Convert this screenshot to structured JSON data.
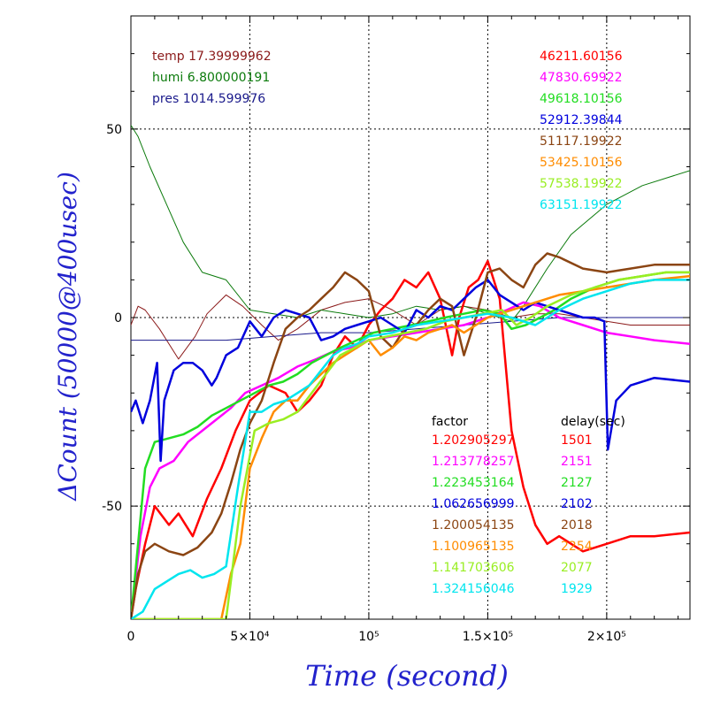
{
  "chart_data": {
    "type": "line",
    "xlabel": "Time (second)",
    "ylabel": "ΔCount (50000@400usec)",
    "xlim": [
      0,
      235000
    ],
    "ylim": [
      -80,
      80
    ],
    "x_ticks": [
      0,
      50000,
      100000,
      150000,
      200000
    ],
    "x_tick_labels": [
      "0",
      "5×10⁴",
      "10⁵",
      "1.5×10⁵",
      "2×10⁵"
    ],
    "y_ticks": [
      -50,
      0,
      50
    ],
    "y_tick_labels": [
      "-50",
      "0",
      "50"
    ],
    "grid": true,
    "env": [
      {
        "label": "temp 17.39999962",
        "color": "#8b1a1a"
      },
      {
        "label": "humi 6.800000191",
        "color": "#0b7a0b"
      },
      {
        "label": "pres 1014.599976",
        "color": "#1a1a8b"
      }
    ],
    "counts": [
      {
        "value": "46211.60156",
        "color": "#ff0000"
      },
      {
        "value": "47830.69922",
        "color": "#ff00ff"
      },
      {
        "value": "49618.10156",
        "color": "#22dd22"
      },
      {
        "value": "52912.39844",
        "color": "#0000dd"
      },
      {
        "value": "51117.19922",
        "color": "#8b4513"
      },
      {
        "value": "53425.10156",
        "color": "#ff8c00"
      },
      {
        "value": "57538.19922",
        "color": "#99ee22"
      },
      {
        "value": "63151.19922",
        "color": "#00e5ee"
      }
    ],
    "factor_header": "factor",
    "delay_header": "delay(sec)",
    "factors": [
      "1.202905297",
      "1.213778257",
      "1.223453164",
      "1.062656999",
      "1.200054135",
      "1.100965135",
      "1.141703606",
      "1.324156046"
    ],
    "delays": [
      "1501",
      "2151",
      "2127",
      "2102",
      "2018",
      "2254",
      "2077",
      "1929"
    ],
    "series": [
      {
        "name": "temp",
        "color": "#8b1a1a",
        "x": [
          0,
          3000,
          6000,
          12000,
          20000,
          27000,
          32000,
          40000,
          47000,
          55000,
          62000,
          70000,
          80000,
          90000,
          100000,
          110000,
          120000,
          130000,
          140000,
          150000,
          160000,
          170000,
          180000,
          190000,
          200000,
          210000,
          220000,
          235000
        ],
        "y": [
          -2,
          3,
          2,
          -3,
          -11,
          -5,
          1,
          6,
          3,
          -2,
          -6,
          -3,
          2,
          4,
          5,
          2,
          -2,
          2,
          3,
          2,
          0,
          1,
          1,
          0,
          -1,
          -2,
          -2,
          -2
        ]
      },
      {
        "name": "humi",
        "color": "#0b7a0b",
        "x": [
          0,
          3000,
          8000,
          15000,
          22000,
          30000,
          40000,
          50000,
          60000,
          70000,
          80000,
          90000,
          100000,
          110000,
          120000,
          130000,
          140000,
          150000,
          160000,
          165000,
          175000,
          185000,
          200000,
          215000,
          235000
        ],
        "y": [
          51,
          48,
          40,
          30,
          20,
          12,
          10,
          2,
          1,
          0,
          2,
          1,
          0,
          1,
          3,
          2,
          3,
          1,
          -1,
          3,
          13,
          22,
          30,
          35,
          39
        ]
      },
      {
        "name": "pres",
        "color": "#1a1a8b",
        "x": [
          0,
          20000,
          40000,
          60000,
          80000,
          100000,
          120000,
          140000,
          160000,
          180000,
          200000,
          220000,
          235000
        ],
        "y": [
          -6,
          -6,
          -6,
          -5,
          -4,
          -4,
          -3,
          -2,
          -1,
          0,
          0,
          0,
          0
        ]
      },
      {
        "name": "46211.60156",
        "color": "#ff0000",
        "x": [
          0,
          2000,
          6000,
          10000,
          16000,
          20000,
          26000,
          32000,
          38000,
          44000,
          50000,
          58000,
          65000,
          70000,
          75000,
          80000,
          85000,
          90000,
          95000,
          100000,
          105000,
          110000,
          115000,
          120000,
          125000,
          130000,
          135000,
          138000,
          142000,
          146000,
          150000,
          155000,
          160000,
          165000,
          170000,
          175000,
          180000,
          190000,
          200000,
          210000,
          220000,
          235000
        ],
        "y": [
          -80,
          -72,
          -60,
          -50,
          -55,
          -52,
          -58,
          -48,
          -40,
          -30,
          -22,
          -18,
          -20,
          -25,
          -22,
          -18,
          -10,
          -5,
          -8,
          -2,
          2,
          5,
          10,
          8,
          12,
          5,
          -10,
          0,
          8,
          10,
          15,
          5,
          -30,
          -45,
          -55,
          -60,
          -58,
          -62,
          -60,
          -58,
          -58,
          -57
        ]
      },
      {
        "name": "47830.69922",
        "color": "#ff00ff",
        "x": [
          0,
          4000,
          8000,
          12000,
          18000,
          24000,
          30000,
          36000,
          42000,
          48000,
          55000,
          62000,
          70000,
          78000,
          85000,
          92000,
          100000,
          110000,
          120000,
          130000,
          140000,
          150000,
          158000,
          165000,
          172000,
          180000,
          190000,
          200000,
          210000,
          220000,
          235000
        ],
        "y": [
          -80,
          -58,
          -45,
          -40,
          -38,
          -33,
          -30,
          -27,
          -24,
          -20,
          -18,
          -16,
          -13,
          -11,
          -9,
          -8,
          -6,
          -5,
          -4,
          -3,
          -2,
          0,
          2,
          4,
          3,
          0,
          -2,
          -4,
          -5,
          -6,
          -7
        ]
      },
      {
        "name": "49618.10156",
        "color": "#22dd22",
        "x": [
          0,
          3000,
          6000,
          10000,
          16000,
          22000,
          28000,
          34000,
          40000,
          46000,
          52000,
          58000,
          64000,
          70000,
          76000,
          82000,
          88000,
          95000,
          102000,
          110000,
          118000,
          125000,
          132000,
          140000,
          148000,
          155000,
          160000,
          166000,
          172000,
          178000,
          185000,
          195000,
          205000,
          215000,
          225000,
          235000
        ],
        "y": [
          -80,
          -60,
          -40,
          -33,
          -32,
          -31,
          -29,
          -26,
          -24,
          -22,
          -20,
          -18,
          -17,
          -15,
          -12,
          -10,
          -8,
          -6,
          -4,
          -3,
          -2,
          -1,
          0,
          1,
          2,
          1,
          -3,
          -2,
          0,
          2,
          5,
          8,
          10,
          11,
          12,
          12
        ]
      },
      {
        "name": "52912.39844",
        "color": "#0000dd",
        "x": [
          0,
          2000,
          5000,
          8000,
          11000,
          12500,
          14000,
          18000,
          22000,
          26000,
          30000,
          34000,
          36000,
          40000,
          45000,
          50000,
          55000,
          60000,
          65000,
          70000,
          75000,
          80000,
          85000,
          90000,
          95000,
          100000,
          105000,
          110000,
          115000,
          120000,
          125000,
          130000,
          135000,
          140000,
          145000,
          150000,
          155000,
          160000,
          165000,
          170000,
          175000,
          180000,
          185000,
          190000,
          195000,
          199000,
          200500,
          204000,
          210000,
          220000,
          235000
        ],
        "y": [
          -25,
          -22,
          -28,
          -22,
          -12,
          -38,
          -22,
          -14,
          -12,
          -12,
          -14,
          -18,
          -16,
          -10,
          -8,
          -1,
          -5,
          0,
          2,
          1,
          0,
          -6,
          -5,
          -3,
          -2,
          -1,
          0,
          -2,
          -4,
          2,
          0,
          3,
          2,
          5,
          8,
          10,
          6,
          4,
          2,
          4,
          3,
          2,
          1,
          0,
          0,
          -1,
          -35,
          -22,
          -18,
          -16,
          -17
        ]
      },
      {
        "name": "51117.19922",
        "color": "#8b4513",
        "x": [
          0,
          3000,
          6000,
          10000,
          16000,
          22000,
          28000,
          34000,
          38000,
          42000,
          46000,
          50000,
          55000,
          60000,
          65000,
          70000,
          75000,
          80000,
          85000,
          90000,
          95000,
          100000,
          105000,
          110000,
          115000,
          120000,
          125000,
          130000,
          135000,
          140000,
          145000,
          150000,
          155000,
          160000,
          165000,
          170000,
          175000,
          180000,
          190000,
          200000,
          210000,
          220000,
          235000
        ],
        "y": [
          -80,
          -68,
          -62,
          -60,
          -62,
          -63,
          -61,
          -57,
          -52,
          -44,
          -35,
          -28,
          -22,
          -12,
          -3,
          0,
          2,
          5,
          8,
          12,
          10,
          7,
          -5,
          -8,
          -3,
          -2,
          2,
          5,
          3,
          -10,
          0,
          12,
          13,
          10,
          8,
          14,
          17,
          16,
          13,
          12,
          13,
          14,
          14
        ]
      },
      {
        "name": "53425.10156",
        "color": "#ff8c00",
        "x": [
          0,
          10000,
          20000,
          30000,
          38000,
          42000,
          46000,
          50000,
          55000,
          60000,
          65000,
          70000,
          75000,
          80000,
          85000,
          90000,
          95000,
          100000,
          105000,
          110000,
          115000,
          120000,
          125000,
          130000,
          135000,
          140000,
          145000,
          150000,
          155000,
          160000,
          165000,
          170000,
          175000,
          180000,
          190000,
          200000,
          210000,
          220000,
          235000
        ],
        "y": [
          -80,
          -80,
          -80,
          -80,
          -80,
          -68,
          -60,
          -40,
          -32,
          -25,
          -22,
          -22,
          -18,
          -15,
          -12,
          -10,
          -8,
          -6,
          -10,
          -8,
          -5,
          -6,
          -4,
          -3,
          -2,
          -4,
          -2,
          0,
          1,
          2,
          3,
          4,
          5,
          6,
          7,
          8,
          9,
          10,
          11
        ]
      },
      {
        "name": "57538.19922",
        "color": "#99ee22",
        "x": [
          0,
          20000,
          40000,
          46000,
          52000,
          58000,
          64000,
          70000,
          76000,
          82000,
          88000,
          94000,
          100000,
          108000,
          116000,
          124000,
          132000,
          140000,
          148000,
          156000,
          162000,
          168000,
          175000,
          185000,
          195000,
          205000,
          215000,
          225000,
          235000
        ],
        "y": [
          -80,
          -80,
          -80,
          -50,
          -30,
          -28,
          -27,
          -25,
          -20,
          -15,
          -10,
          -8,
          -6,
          -5,
          -4,
          -3,
          -1,
          0,
          1,
          2,
          -2,
          0,
          3,
          6,
          8,
          10,
          11,
          12,
          12
        ]
      },
      {
        "name": "63151.19922",
        "color": "#00e5ee",
        "x": [
          0,
          5000,
          10000,
          15000,
          20000,
          25000,
          30000,
          35000,
          40000,
          45000,
          50000,
          55000,
          60000,
          65000,
          70000,
          75000,
          80000,
          85000,
          90000,
          95000,
          100000,
          110000,
          120000,
          130000,
          140000,
          150000,
          160000,
          170000,
          180000,
          190000,
          200000,
          210000,
          220000,
          235000
        ],
        "y": [
          -80,
          -78,
          -72,
          -70,
          -68,
          -67,
          -69,
          -68,
          -66,
          -45,
          -25,
          -25,
          -23,
          -22,
          -20,
          -18,
          -14,
          -10,
          -8,
          -7,
          -5,
          -4,
          -2,
          -1,
          0,
          1,
          0,
          -2,
          2,
          5,
          7,
          9,
          10,
          10
        ]
      }
    ]
  }
}
